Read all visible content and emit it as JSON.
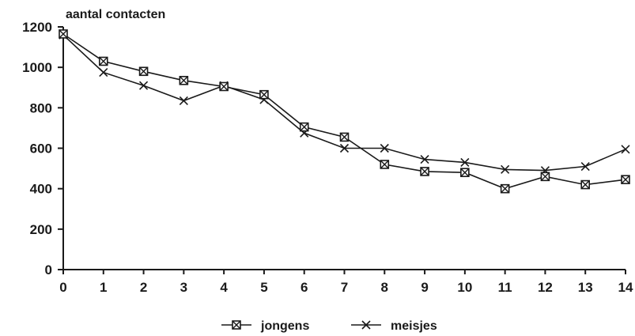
{
  "chart_data": {
    "type": "line",
    "ylabel": "aantal contacten",
    "x": [
      0,
      1,
      2,
      3,
      4,
      5,
      6,
      7,
      8,
      9,
      10,
      11,
      12,
      13,
      14
    ],
    "xlim": [
      0,
      14
    ],
    "ylim": [
      0,
      1200
    ],
    "yticks": [
      0,
      200,
      400,
      600,
      800,
      1000,
      1200
    ],
    "xticks": [
      0,
      1,
      2,
      3,
      4,
      5,
      6,
      7,
      8,
      9,
      10,
      11,
      12,
      13,
      14
    ],
    "grid": false,
    "legend_position": "bottom",
    "series": [
      {
        "name": "jongens",
        "marker": "boxed-x",
        "values": [
          1165,
          1030,
          980,
          935,
          905,
          865,
          705,
          655,
          520,
          485,
          480,
          400,
          460,
          420,
          445
        ]
      },
      {
        "name": "meisjes",
        "marker": "x",
        "values": [
          1160,
          975,
          910,
          835,
          910,
          840,
          675,
          600,
          600,
          545,
          530,
          495,
          490,
          510,
          595
        ]
      }
    ]
  },
  "colors": {
    "ink": "#1a1a1a",
    "background": "#ffffff"
  }
}
